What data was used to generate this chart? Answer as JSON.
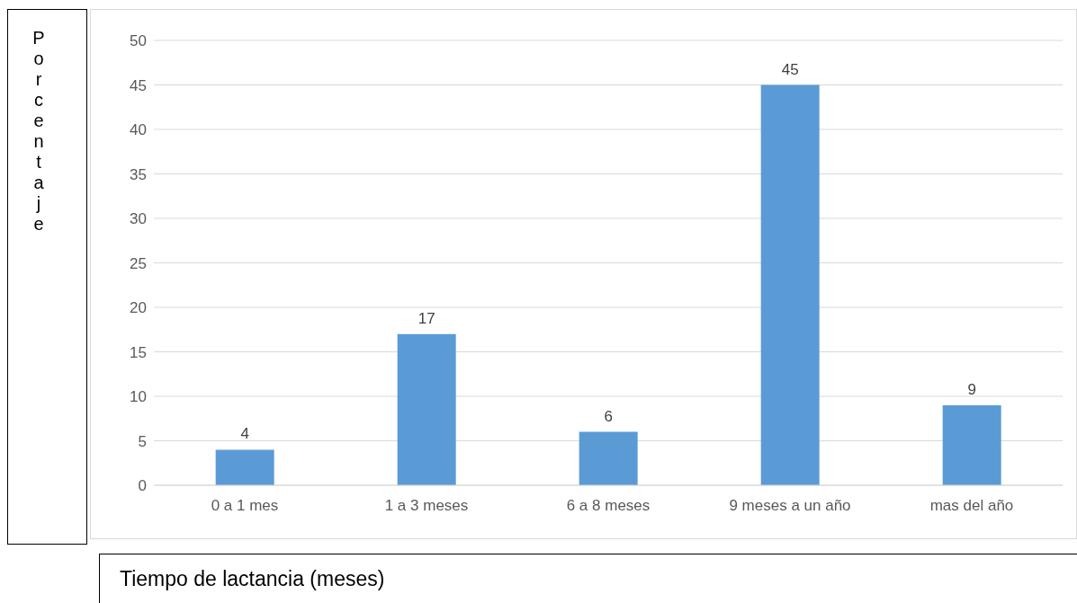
{
  "chart_data": {
    "type": "bar",
    "xlabel": "Tiempo de lactancia (meses)",
    "ylabel": "Porcentaje",
    "categories": [
      "0 a 1 mes",
      "1 a 3 meses",
      "6 a 8 meses",
      "9 meses a un año",
      "mas del año"
    ],
    "values": [
      4,
      17,
      6,
      45,
      9
    ],
    "color": "#5b9bd5",
    "ylim": [
      0,
      50
    ],
    "yticks": [
      0,
      5,
      10,
      15,
      20,
      25,
      30,
      35,
      40,
      45,
      50
    ],
    "grid": "y",
    "data_labels": true,
    "legend": false
  }
}
